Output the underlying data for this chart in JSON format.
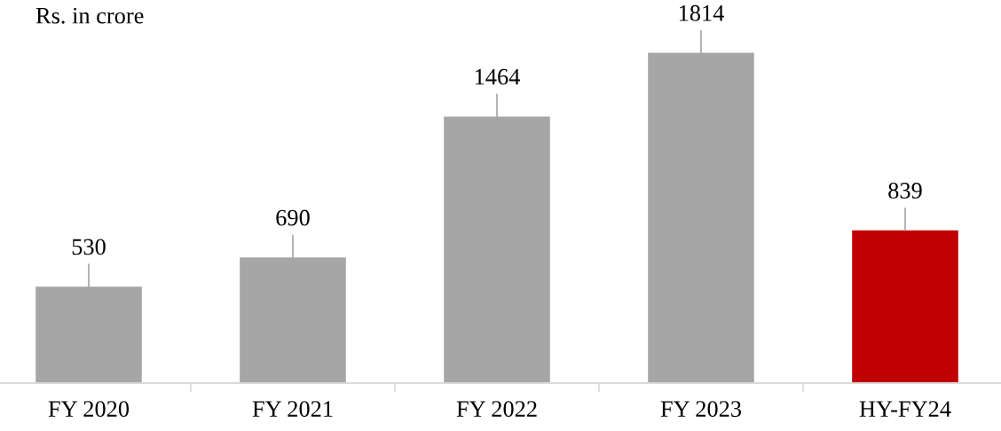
{
  "chart_data": {
    "type": "bar",
    "title": "Rs. in crore",
    "categories": [
      "FY 2020",
      "FY 2021",
      "FY 2022",
      "FY 2023",
      "HY-FY24"
    ],
    "values": [
      530,
      690,
      1464,
      1814,
      839
    ],
    "colors": [
      "#a6a6a6",
      "#a6a6a6",
      "#a6a6a6",
      "#a6a6a6",
      "#c00000"
    ],
    "data_labels": true
  }
}
